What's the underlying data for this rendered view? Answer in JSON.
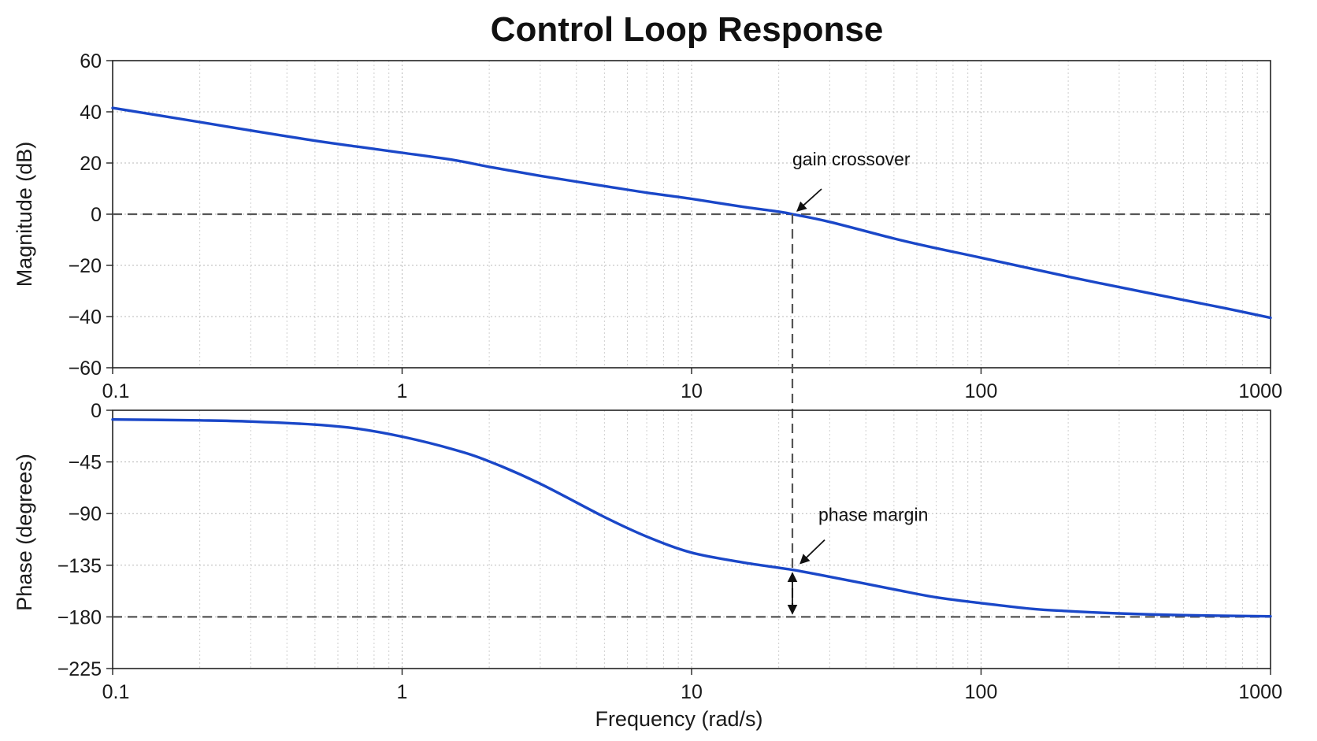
{
  "chart_data": [
    {
      "type": "line",
      "title": "Control Loop Response",
      "xlabel": "",
      "ylabel": "Magnitude (dB)",
      "xscale": "log",
      "xlim": [
        0.1,
        1000
      ],
      "ylim": [
        -60,
        60
      ],
      "xticks": [
        0.1,
        1,
        10,
        100,
        1000
      ],
      "xtick_labels": [
        "0.1",
        "1",
        "10",
        "100",
        "1000"
      ],
      "yticks": [
        60,
        40,
        20,
        0,
        -20,
        -40,
        -60
      ],
      "ytick_labels": [
        "60",
        "40",
        "20",
        "0",
        "−20",
        "−40",
        "−60"
      ],
      "grid": true,
      "color": "#1a47c8",
      "series": [
        {
          "x": [
            0.1,
            0.2,
            0.3,
            0.5,
            0.7,
            1,
            1.5,
            2,
            3,
            5,
            7,
            10,
            15,
            20,
            22.3,
            30,
            50,
            70,
            100,
            200,
            300,
            500,
            700,
            1000
          ],
          "values": [
            41.5,
            36,
            32.7,
            28.7,
            26.4,
            24,
            21.2,
            18.5,
            15,
            11,
            8.4,
            6,
            2.9,
            1,
            0,
            -3,
            -9.5,
            -13.3,
            -17,
            -24.4,
            -28.5,
            -33.5,
            -36.8,
            -40.5
          ]
        }
      ],
      "reference_lines": [
        {
          "axis": "y",
          "value": 0,
          "style": "dashed"
        }
      ],
      "annotations": [
        {
          "text": "gain crossover",
          "x": 22.3,
          "y": 0
        }
      ]
    },
    {
      "type": "line",
      "xlabel": "Frequency (rad/s)",
      "ylabel": "Phase (degrees)",
      "xscale": "log",
      "xlim": [
        0.1,
        1000
      ],
      "ylim": [
        -225,
        0
      ],
      "xticks": [
        0.1,
        1,
        10,
        100,
        1000
      ],
      "xtick_labels": [
        "0.1",
        "1",
        "10",
        "100",
        "1000"
      ],
      "yticks": [
        0,
        -45,
        -90,
        -135,
        -180,
        -225
      ],
      "ytick_labels": [
        "0",
        "−45",
        "−90",
        "−135",
        "−180",
        "−225"
      ],
      "grid": true,
      "color": "#1a47c8",
      "series": [
        {
          "x": [
            0.1,
            0.2,
            0.3,
            0.5,
            0.7,
            1,
            1.5,
            2,
            3,
            5,
            7,
            10,
            15,
            22.3,
            30,
            50,
            70,
            100,
            150,
            200,
            300,
            500,
            1000
          ],
          "values": [
            -8,
            -8.8,
            -9.8,
            -12.5,
            -16,
            -23,
            -34,
            -44.5,
            -64,
            -93,
            -110,
            -124,
            -132.5,
            -139,
            -145,
            -156,
            -163,
            -168,
            -173,
            -175,
            -177,
            -178.5,
            -179.5
          ]
        }
      ],
      "reference_lines": [
        {
          "axis": "y",
          "value": -180,
          "style": "dashed"
        }
      ],
      "annotations": [
        {
          "text": "phase margin",
          "x": 22.3,
          "y": -139
        }
      ]
    }
  ]
}
